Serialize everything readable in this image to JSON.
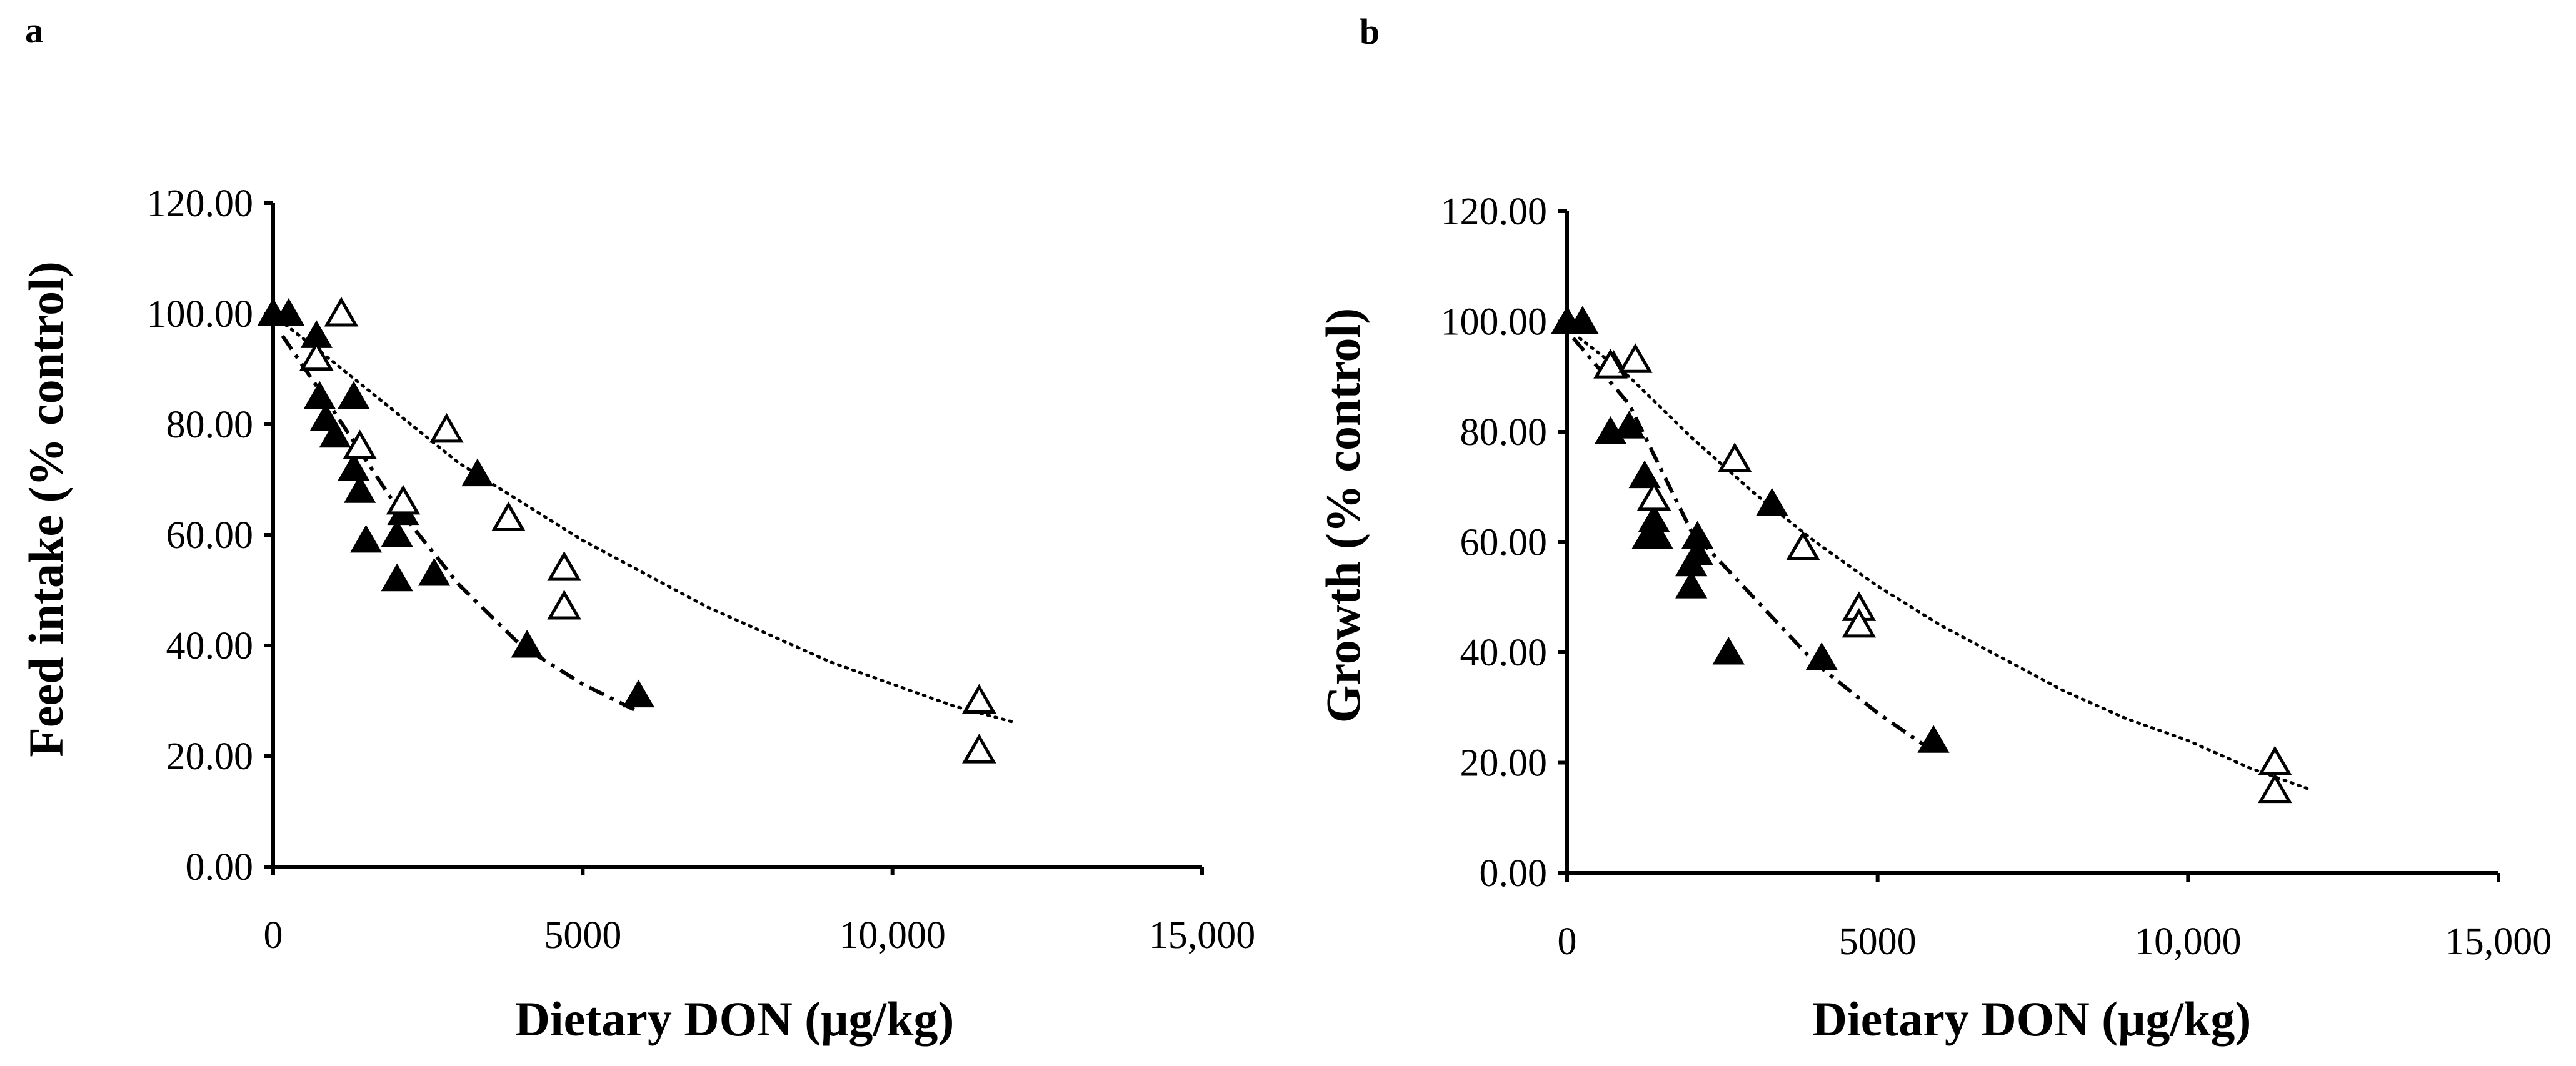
{
  "chart_data": [
    {
      "type": "scatter",
      "panel": "a",
      "xlabel": "Dietary DON (μg/kg)",
      "ylabel": "Feed intake (% control)",
      "xlim": [
        0,
        15000
      ],
      "ylim": [
        0,
        120
      ],
      "x_ticks": [
        0,
        5000,
        10000,
        15000
      ],
      "x_tick_labels": [
        "0",
        "5000",
        "10,000",
        "15,000"
      ],
      "y_ticks": [
        0,
        20,
        40,
        60,
        80,
        100,
        120
      ],
      "y_tick_labels": [
        "0.00",
        "20.00",
        "40.00",
        "60.00",
        "80.00",
        "100.00",
        "120.00"
      ],
      "grid": false,
      "series": [
        {
          "name": "filled triangles",
          "marker": "filled-triangle",
          "points": [
            [
              0,
              100
            ],
            [
              250,
              100
            ],
            [
              700,
              96
            ],
            [
              750,
              85
            ],
            [
              850,
              81
            ],
            [
              1000,
              78
            ],
            [
              1300,
              72
            ],
            [
              1300,
              85
            ],
            [
              1400,
              68
            ],
            [
              1500,
              59
            ],
            [
              2000,
              60
            ],
            [
              2000,
              52
            ],
            [
              2100,
              64
            ],
            [
              2600,
              53
            ],
            [
              3300,
              71
            ],
            [
              4100,
              40
            ],
            [
              5900,
              31
            ]
          ],
          "trend": {
            "style": "dash-dot",
            "points": [
              [
                150,
                96
              ],
              [
                1000,
                82
              ],
              [
                2000,
                65
              ],
              [
                3000,
                51
              ],
              [
                4000,
                40
              ],
              [
                5000,
                33
              ],
              [
                5900,
                28
              ]
            ]
          }
        },
        {
          "name": "open triangles",
          "marker": "open-triangle",
          "points": [
            [
              700,
              92
            ],
            [
              1100,
              100
            ],
            [
              1400,
              76
            ],
            [
              2100,
              66
            ],
            [
              2800,
              79
            ],
            [
              3800,
              63
            ],
            [
              4700,
              54
            ],
            [
              4700,
              47
            ],
            [
              11400,
              30
            ],
            [
              11400,
              21
            ]
          ],
          "trend": {
            "style": "dotted",
            "points": [
              [
                200,
                98
              ],
              [
                1000,
                91
              ],
              [
                2000,
                82
              ],
              [
                3000,
                73
              ],
              [
                4000,
                66
              ],
              [
                5000,
                59
              ],
              [
                6000,
                53
              ],
              [
                7000,
                47
              ],
              [
                8000,
                42
              ],
              [
                9000,
                37
              ],
              [
                10000,
                33
              ],
              [
                11000,
                29
              ],
              [
                12000,
                26
              ]
            ]
          }
        }
      ]
    },
    {
      "type": "scatter",
      "panel": "b",
      "xlabel": "Dietary DON (μg/kg)",
      "ylabel": "Growth (% control)",
      "xlim": [
        0,
        15000
      ],
      "ylim": [
        0,
        120
      ],
      "x_ticks": [
        0,
        5000,
        10000,
        15000
      ],
      "x_tick_labels": [
        "0",
        "5000",
        "10,000",
        "15,000"
      ],
      "y_ticks": [
        0,
        20,
        40,
        60,
        80,
        100,
        120
      ],
      "y_tick_labels": [
        "0.00",
        "20.00",
        "40.00",
        "60.00",
        "80.00",
        "100.00",
        "120.00"
      ],
      "grid": false,
      "series": [
        {
          "name": "filled triangles",
          "marker": "filled-triangle",
          "points": [
            [
              0,
              100
            ],
            [
              250,
              100
            ],
            [
              700,
              80
            ],
            [
              750,
              92
            ],
            [
              1000,
              81
            ],
            [
              1250,
              72
            ],
            [
              1300,
              61
            ],
            [
              1400,
              64
            ],
            [
              1450,
              61
            ],
            [
              2000,
              52
            ],
            [
              2000,
              56
            ],
            [
              2100,
              61
            ],
            [
              2100,
              58
            ],
            [
              2600,
              40
            ],
            [
              3300,
              67
            ],
            [
              4100,
              39
            ],
            [
              5900,
              24
            ]
          ],
          "trend": {
            "style": "dash-dot",
            "points": [
              [
                100,
                97
              ],
              [
                1000,
                85
              ],
              [
                2000,
                62
              ],
              [
                3000,
                50
              ],
              [
                4000,
                38
              ],
              [
                5000,
                29
              ],
              [
                5900,
                22
              ]
            ]
          }
        },
        {
          "name": "open triangles",
          "marker": "open-triangle",
          "points": [
            [
              700,
              92
            ],
            [
              1100,
              93
            ],
            [
              1400,
              68
            ],
            [
              2700,
              75
            ],
            [
              3800,
              59
            ],
            [
              4700,
              48
            ],
            [
              4700,
              45
            ],
            [
              11400,
              20
            ],
            [
              11400,
              15
            ]
          ],
          "trend": {
            "style": "dotted",
            "points": [
              [
                200,
                97
              ],
              [
                1000,
                90
              ],
              [
                2000,
                79
              ],
              [
                3000,
                69
              ],
              [
                4000,
                60
              ],
              [
                5000,
                52
              ],
              [
                6000,
                45
              ],
              [
                7000,
                39
              ],
              [
                8000,
                33
              ],
              [
                9000,
                28
              ],
              [
                10000,
                24
              ],
              [
                11000,
                19
              ],
              [
                12000,
                15
              ]
            ]
          }
        }
      ]
    }
  ]
}
